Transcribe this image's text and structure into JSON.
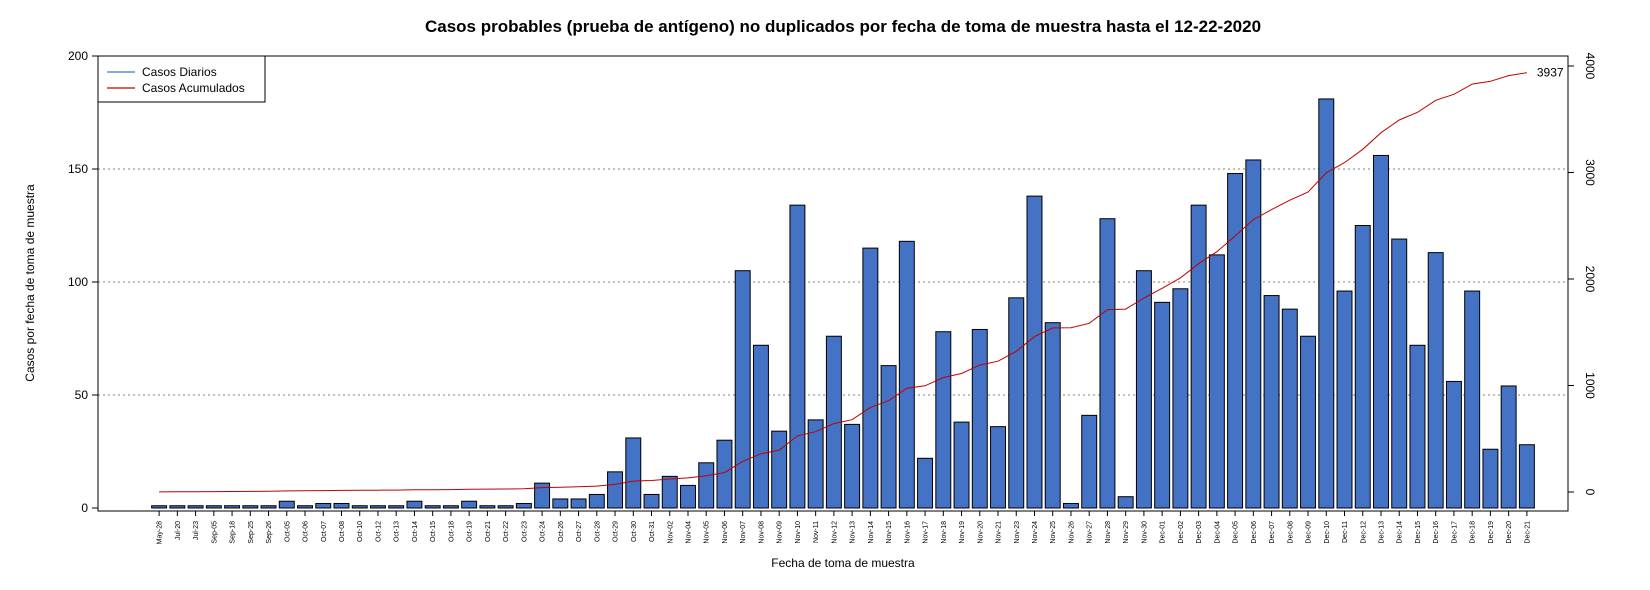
{
  "chart_data": {
    "type": "bar",
    "title": "Casos probables (prueba de antígeno) no duplicados por fecha de toma de muestra hasta el 12-22-2020",
    "xlabel": "Fecha de toma de muestra",
    "ylabel": "Casos por fecha de toma de muestra",
    "ylim": [
      0,
      200
    ],
    "y2lim": [
      0,
      4000
    ],
    "y_ticks": [
      0,
      50,
      100,
      150,
      200
    ],
    "y2_ticks": [
      0,
      1000,
      2000,
      3000,
      4000
    ],
    "grid": "horizontal dotted",
    "legend_position": "top-left",
    "end_label": "3937",
    "categories": [
      "May-28",
      "Jul-20",
      "Jul-23",
      "Sep-05",
      "Sep-18",
      "Sep-25",
      "Sep-26",
      "Oct-05",
      "Oct-06",
      "Oct-07",
      "Oct-08",
      "Oct-10",
      "Oct-12",
      "Oct-13",
      "Oct-14",
      "Oct-15",
      "Oct-18",
      "Oct-19",
      "Oct-21",
      "Oct-22",
      "Oct-23",
      "Oct-24",
      "Oct-26",
      "Oct-27",
      "Oct-28",
      "Oct-29",
      "Oct-30",
      "Oct-31",
      "Nov-02",
      "Nov-04",
      "Nov-05",
      "Nov-06",
      "Nov-07",
      "Nov-08",
      "Nov-09",
      "Nov-10",
      "Nov-11",
      "Nov-12",
      "Nov-13",
      "Nov-14",
      "Nov-15",
      "Nov-16",
      "Nov-17",
      "Nov-18",
      "Nov-19",
      "Nov-20",
      "Nov-21",
      "Nov-23",
      "Nov-24",
      "Nov-25",
      "Nov-26",
      "Nov-27",
      "Nov-28",
      "Nov-29",
      "Nov-30",
      "Dec-01",
      "Dec-02",
      "Dec-03",
      "Dec-04",
      "Dec-05",
      "Dec-06",
      "Dec-07",
      "Dec-08",
      "Dec-09",
      "Dec-10",
      "Dec-11",
      "Dec-12",
      "Dec-13",
      "Dec-14",
      "Dec-15",
      "Dec-16",
      "Dec-17",
      "Dec-18",
      "Dec-19",
      "Dec-20",
      "Dec-21"
    ],
    "series": [
      {
        "name": "Casos Diarios",
        "color": "#4472C4",
        "axis": "left",
        "values": [
          1,
          1,
          1,
          1,
          1,
          1,
          1,
          3,
          1,
          2,
          2,
          1,
          1,
          1,
          3,
          1,
          1,
          3,
          1,
          1,
          2,
          11,
          4,
          4,
          6,
          16,
          31,
          6,
          14,
          10,
          20,
          30,
          105,
          72,
          34,
          134,
          39,
          76,
          37,
          115,
          63,
          118,
          22,
          78,
          38,
          79,
          36,
          93,
          138,
          82,
          2,
          41,
          128,
          5,
          105,
          91,
          97,
          134,
          112,
          148,
          154,
          94,
          88,
          76,
          181,
          96,
          125,
          156,
          119,
          72,
          113,
          56,
          96,
          26,
          54,
          28
        ]
      },
      {
        "name": "Casos Acumulados",
        "color": "#C00000",
        "axis": "right",
        "values": [
          1,
          2,
          3,
          4,
          5,
          6,
          7,
          10,
          11,
          13,
          15,
          16,
          17,
          18,
          21,
          22,
          23,
          26,
          27,
          28,
          30,
          41,
          45,
          49,
          55,
          71,
          102,
          108,
          122,
          132,
          152,
          182,
          287,
          359,
          393,
          527,
          566,
          642,
          679,
          794,
          857,
          975,
          997,
          1075,
          1113,
          1192,
          1228,
          1321,
          1459,
          1541,
          1543,
          1584,
          1712,
          1717,
          1822,
          1913,
          2010,
          2144,
          2256,
          2404,
          2558,
          2652,
          2740,
          2816,
          2997,
          3093,
          3218,
          3374,
          3493,
          3565,
          3678,
          3734,
          3830,
          3856,
          3910,
          3937
        ]
      }
    ]
  }
}
